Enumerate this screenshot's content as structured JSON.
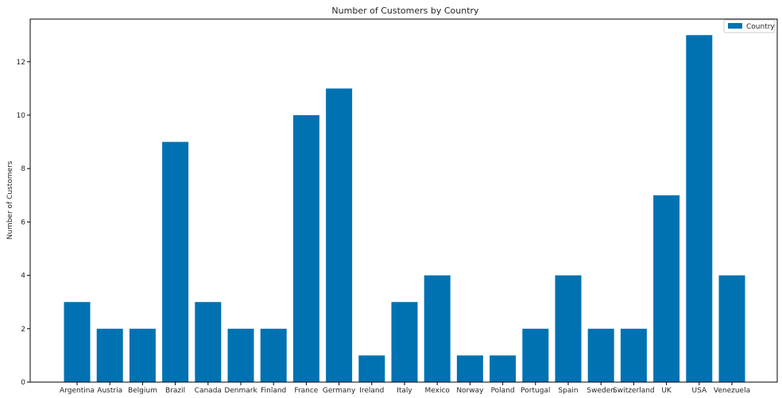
{
  "chart_data": {
    "type": "bar",
    "title": "Number of Customers by Country",
    "xlabel": "",
    "ylabel": "Number of Customers",
    "categories": [
      "Argentina",
      "Austria",
      "Belgium",
      "Brazil",
      "Canada",
      "Denmark",
      "Finland",
      "France",
      "Germany",
      "Ireland",
      "Italy",
      "Mexico",
      "Norway",
      "Poland",
      "Portugal",
      "Spain",
      "Sweden",
      "Switzerland",
      "UK",
      "USA",
      "Venezuela"
    ],
    "series": [
      {
        "name": "Country",
        "values": [
          3,
          2,
          2,
          9,
          3,
          2,
          2,
          10,
          11,
          1,
          3,
          4,
          1,
          1,
          2,
          4,
          2,
          2,
          7,
          13,
          4
        ]
      }
    ],
    "ylim": [
      0,
      13.6
    ],
    "yticks": [
      0,
      2,
      4,
      6,
      8,
      10,
      12
    ],
    "grid": false,
    "legend": "top-right",
    "bar_color": "#0072b2"
  }
}
